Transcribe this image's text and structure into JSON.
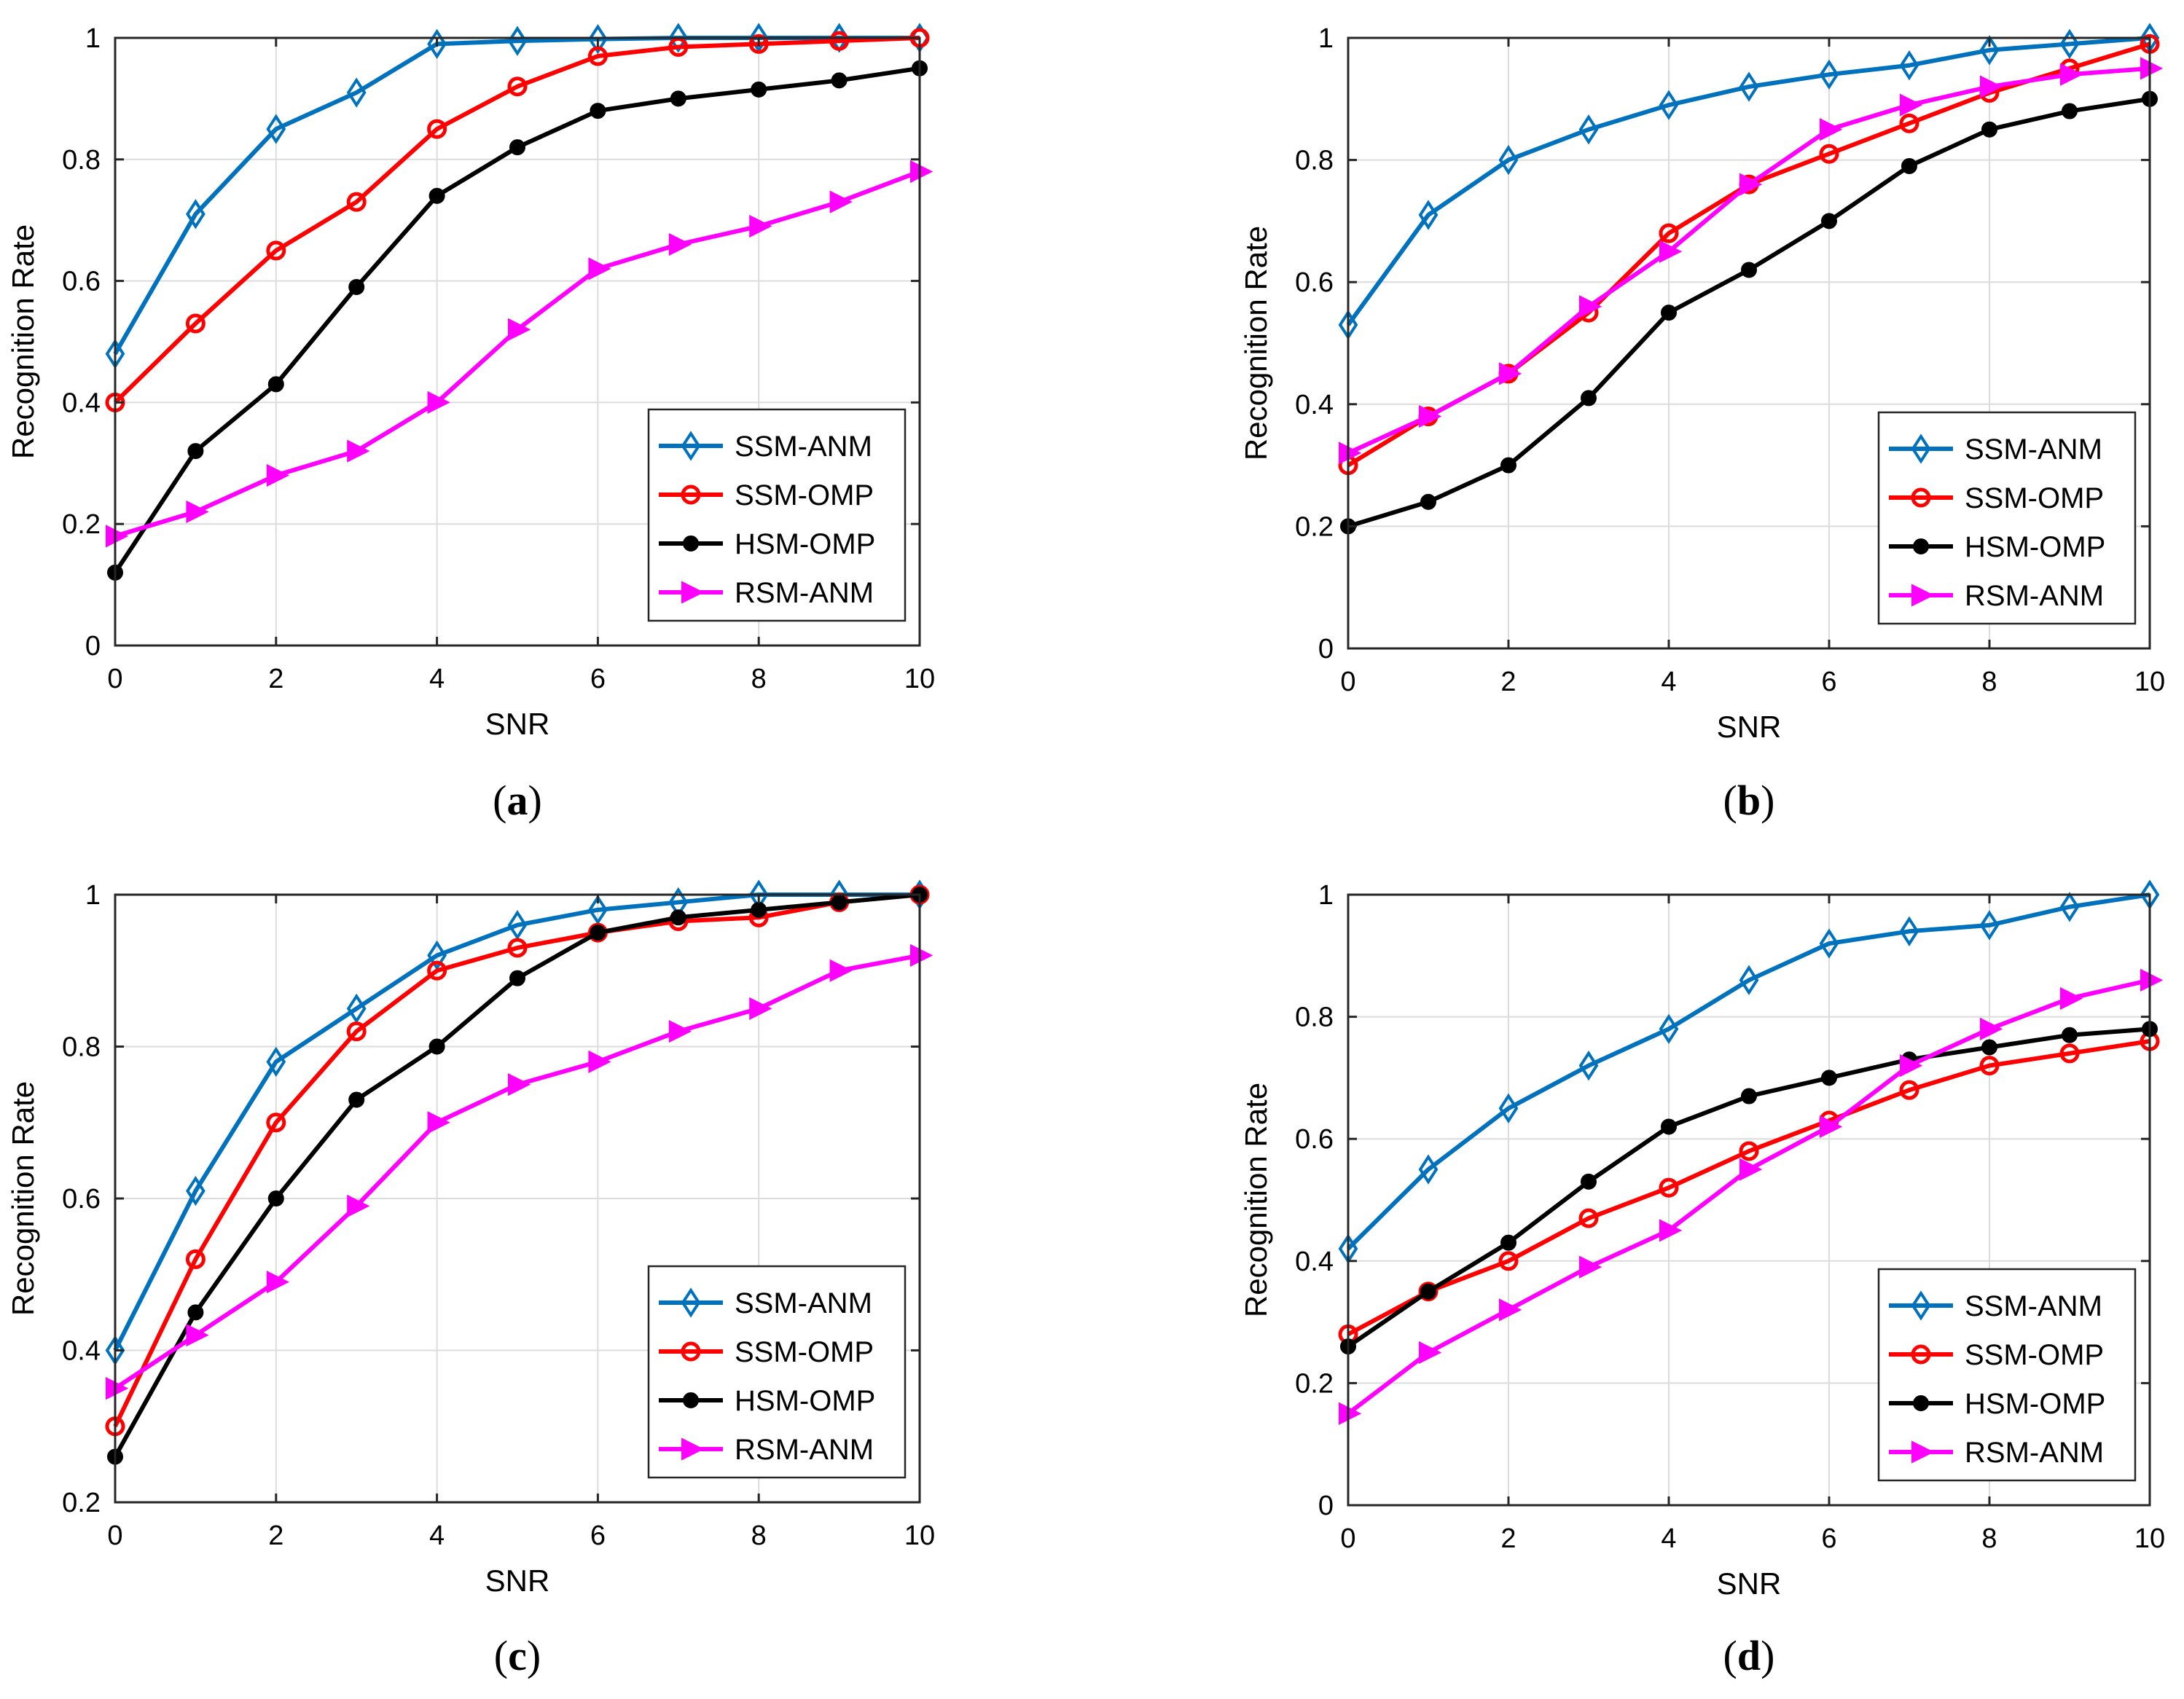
{
  "chart_data": [
    {
      "type": "line",
      "caption": "a",
      "xlabel": "SNR",
      "ylabel": "Recognition Rate",
      "xlim": [
        0,
        10
      ],
      "ylim": [
        0,
        1
      ],
      "xticks": [
        "0",
        "2",
        "4",
        "6",
        "8",
        "10"
      ],
      "yticks": [
        "0",
        "0.2",
        "0.4",
        "0.6",
        "0.8",
        "1"
      ],
      "grid": true,
      "legend_position": "bottom-right",
      "x": [
        0,
        1,
        2,
        3,
        4,
        5,
        6,
        7,
        8,
        9,
        10
      ],
      "series": [
        {
          "name": "SSM-ANM",
          "color": "#0072BD",
          "marker": "diamond",
          "values": [
            0.48,
            0.71,
            0.85,
            0.91,
            0.99,
            0.995,
            0.998,
            1.0,
            1.0,
            1.0,
            1.0
          ]
        },
        {
          "name": "SSM-OMP",
          "color": "#FF0000",
          "marker": "circle",
          "values": [
            0.4,
            0.53,
            0.65,
            0.73,
            0.85,
            0.92,
            0.97,
            0.985,
            0.99,
            0.995,
            1.0
          ]
        },
        {
          "name": "HSM-OMP",
          "color": "#000000",
          "marker": "dot",
          "values": [
            0.12,
            0.32,
            0.43,
            0.59,
            0.74,
            0.82,
            0.88,
            0.9,
            0.915,
            0.93,
            0.95
          ]
        },
        {
          "name": "RSM-ANM",
          "color": "#FF00FF",
          "marker": "triangle-right",
          "values": [
            0.18,
            0.22,
            0.28,
            0.32,
            0.4,
            0.52,
            0.62,
            0.66,
            0.69,
            0.73,
            0.78
          ]
        }
      ]
    },
    {
      "type": "line",
      "caption": "b",
      "xlabel": "SNR",
      "ylabel": "Recognition Rate",
      "xlim": [
        0,
        10
      ],
      "ylim": [
        0,
        1
      ],
      "xticks": [
        "0",
        "2",
        "4",
        "6",
        "8",
        "10"
      ],
      "yticks": [
        "0",
        "0.2",
        "0.4",
        "0.6",
        "0.8",
        "1"
      ],
      "grid": true,
      "legend_position": "bottom-right",
      "x": [
        0,
        1,
        2,
        3,
        4,
        5,
        6,
        7,
        8,
        9,
        10
      ],
      "series": [
        {
          "name": "SSM-ANM",
          "color": "#0072BD",
          "marker": "diamond",
          "values": [
            0.53,
            0.71,
            0.8,
            0.85,
            0.89,
            0.92,
            0.94,
            0.955,
            0.98,
            0.99,
            1.0
          ]
        },
        {
          "name": "SSM-OMP",
          "color": "#FF0000",
          "marker": "circle",
          "values": [
            0.3,
            0.38,
            0.45,
            0.55,
            0.68,
            0.76,
            0.81,
            0.86,
            0.91,
            0.95,
            0.99
          ]
        },
        {
          "name": "HSM-OMP",
          "color": "#000000",
          "marker": "dot",
          "values": [
            0.2,
            0.24,
            0.3,
            0.41,
            0.55,
            0.62,
            0.7,
            0.79,
            0.85,
            0.88,
            0.9
          ]
        },
        {
          "name": "RSM-ANM",
          "color": "#FF00FF",
          "marker": "triangle-right",
          "values": [
            0.32,
            0.38,
            0.45,
            0.56,
            0.65,
            0.76,
            0.85,
            0.89,
            0.92,
            0.94,
            0.95
          ]
        }
      ]
    },
    {
      "type": "line",
      "caption": "c",
      "xlabel": "SNR",
      "ylabel": "Recognition Rate",
      "xlim": [
        0,
        10
      ],
      "ylim": [
        0.2,
        1
      ],
      "xticks": [
        "0",
        "2",
        "4",
        "6",
        "8",
        "10"
      ],
      "yticks": [
        "0.2",
        "0.4",
        "0.6",
        "0.8",
        "1"
      ],
      "grid": true,
      "legend_position": "bottom-right",
      "x": [
        0,
        1,
        2,
        3,
        4,
        5,
        6,
        7,
        8,
        9,
        10
      ],
      "series": [
        {
          "name": "SSM-ANM",
          "color": "#0072BD",
          "marker": "diamond",
          "values": [
            0.4,
            0.61,
            0.78,
            0.85,
            0.92,
            0.96,
            0.98,
            0.99,
            1.0,
            1.0,
            1.0
          ]
        },
        {
          "name": "SSM-OMP",
          "color": "#FF0000",
          "marker": "circle",
          "values": [
            0.3,
            0.52,
            0.7,
            0.82,
            0.9,
            0.93,
            0.95,
            0.965,
            0.97,
            0.99,
            1.0
          ]
        },
        {
          "name": "HSM-OMP",
          "color": "#000000",
          "marker": "dot",
          "values": [
            0.26,
            0.45,
            0.6,
            0.73,
            0.8,
            0.89,
            0.95,
            0.97,
            0.98,
            0.99,
            1.0
          ]
        },
        {
          "name": "RSM-ANM",
          "color": "#FF00FF",
          "marker": "triangle-right",
          "values": [
            0.35,
            0.42,
            0.49,
            0.59,
            0.7,
            0.75,
            0.78,
            0.82,
            0.85,
            0.9,
            0.92
          ]
        }
      ]
    },
    {
      "type": "line",
      "caption": "d",
      "xlabel": "SNR",
      "ylabel": "Recognition Rate",
      "xlim": [
        0,
        10
      ],
      "ylim": [
        0,
        1
      ],
      "xticks": [
        "0",
        "2",
        "4",
        "6",
        "8",
        "10"
      ],
      "yticks": [
        "0",
        "0.2",
        "0.4",
        "0.6",
        "0.8",
        "1"
      ],
      "grid": true,
      "legend_position": "bottom-right",
      "x": [
        0,
        1,
        2,
        3,
        4,
        5,
        6,
        7,
        8,
        9,
        10
      ],
      "series": [
        {
          "name": "SSM-ANM",
          "color": "#0072BD",
          "marker": "diamond",
          "values": [
            0.42,
            0.55,
            0.65,
            0.72,
            0.78,
            0.86,
            0.92,
            0.94,
            0.95,
            0.98,
            1.0
          ]
        },
        {
          "name": "SSM-OMP",
          "color": "#FF0000",
          "marker": "circle",
          "values": [
            0.28,
            0.35,
            0.4,
            0.47,
            0.52,
            0.58,
            0.63,
            0.68,
            0.72,
            0.74,
            0.76
          ]
        },
        {
          "name": "HSM-OMP",
          "color": "#000000",
          "marker": "dot",
          "values": [
            0.26,
            0.35,
            0.43,
            0.53,
            0.62,
            0.67,
            0.7,
            0.73,
            0.75,
            0.77,
            0.78
          ]
        },
        {
          "name": "RSM-ANM",
          "color": "#FF00FF",
          "marker": "triangle-right",
          "values": [
            0.15,
            0.25,
            0.32,
            0.39,
            0.45,
            0.55,
            0.62,
            0.72,
            0.78,
            0.83,
            0.86
          ]
        }
      ]
    }
  ]
}
